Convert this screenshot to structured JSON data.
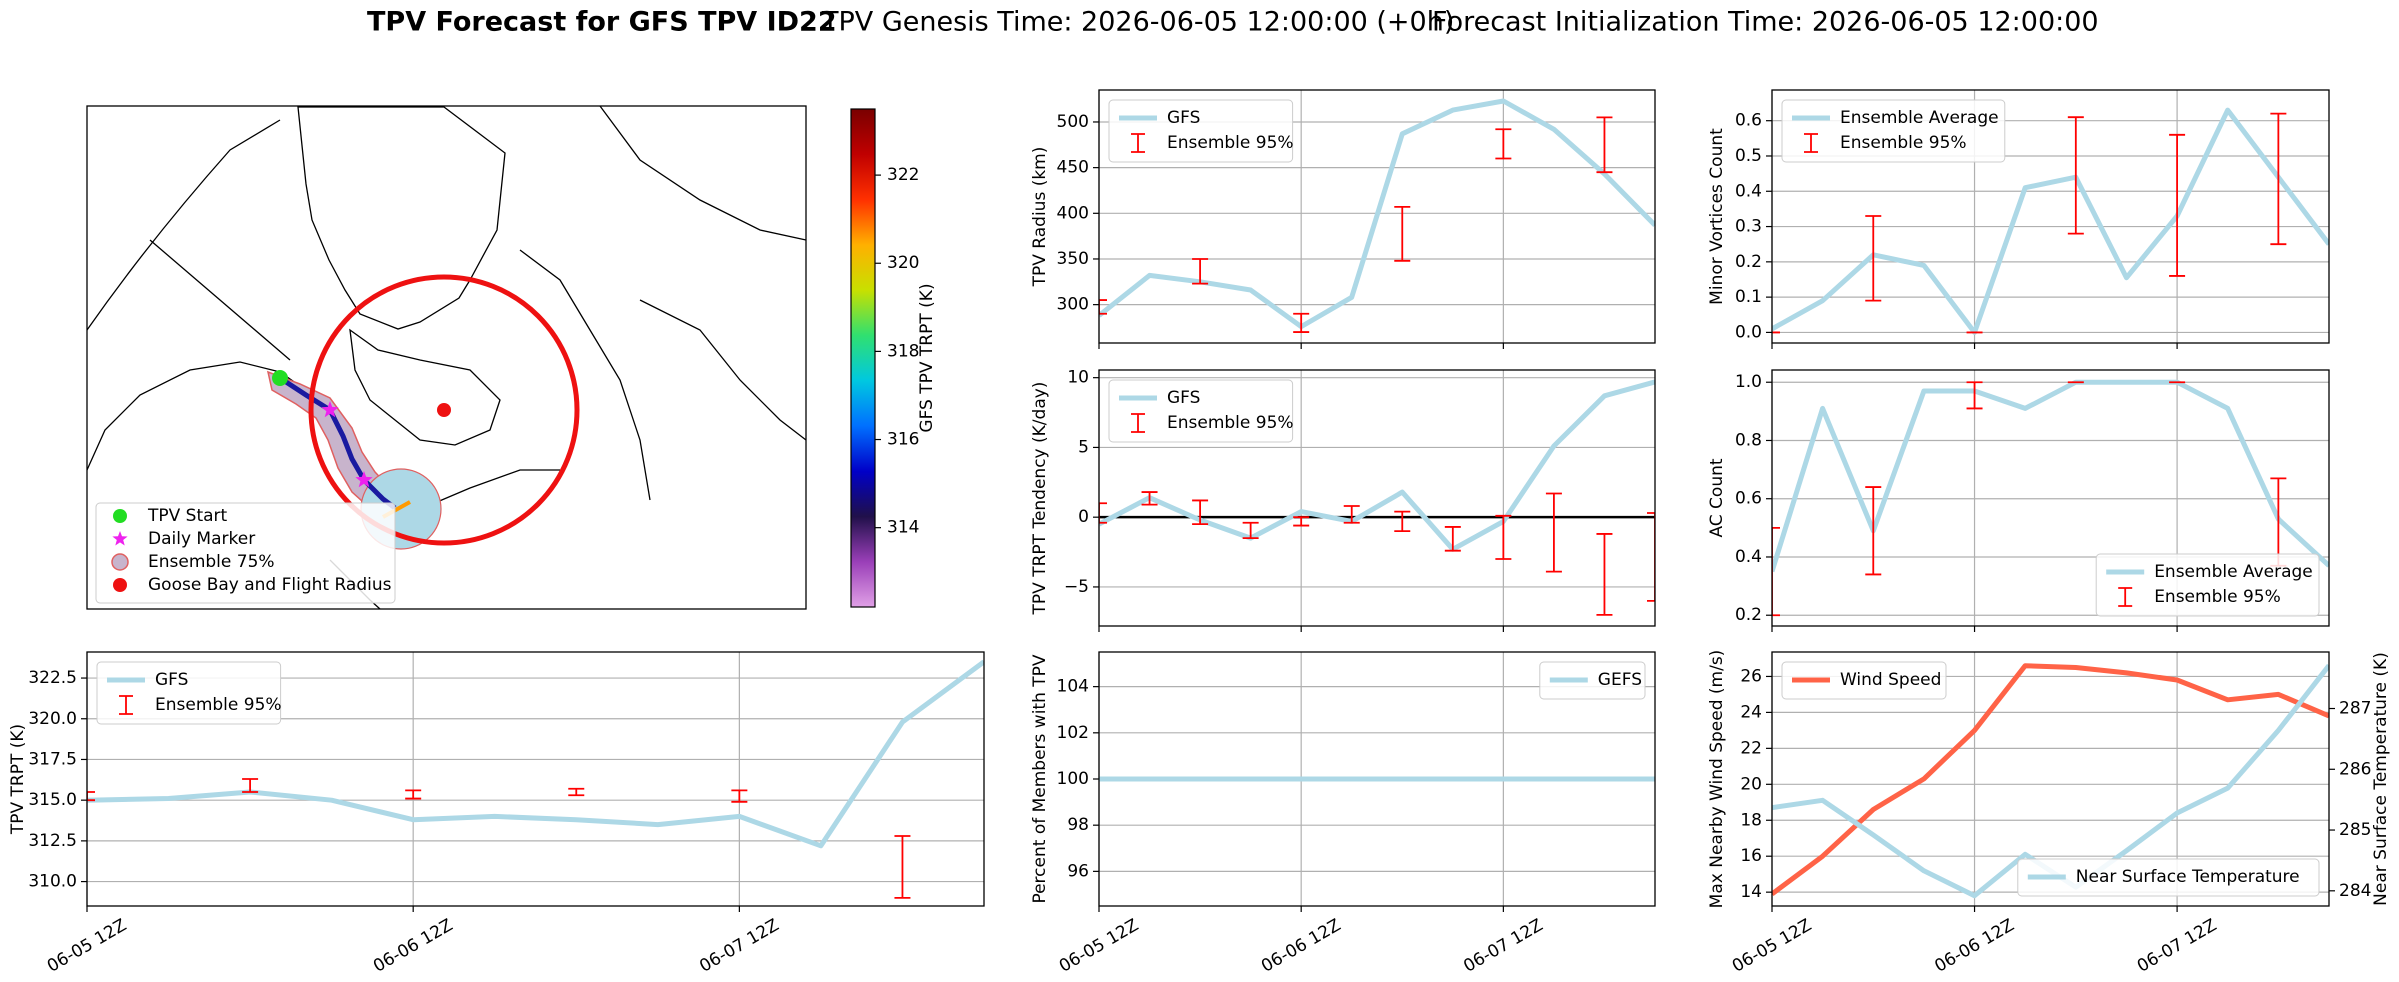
{
  "figure": {
    "title": "TPV Forecast for GFS TPV ID22",
    "genesis": "TPV Genesis Time: 2026-06-05 12:00:00 (+0h)",
    "init": "Forecast Initialization Time: 2026-06-05 12:00:00"
  },
  "chart_data": [
    {
      "type": "map",
      "legend": [
        "TPV Start",
        "Daily Marker",
        "Ensemble 75%",
        "Goose Bay and Flight Radius"
      ]
    },
    {
      "type": "colorbar",
      "label": "GFS TPV TRPT (K)",
      "ylim": [
        312.2,
        323.5
      ],
      "yticks": [
        314,
        316,
        318,
        320,
        322
      ],
      "colors": [
        "#e0a0e6",
        "#9a3fb8",
        "#20104a",
        "#0000c8",
        "#0070ff",
        "#00c8e0",
        "#30e070",
        "#c8e000",
        "#ffb000",
        "#ff3000",
        "#c00000",
        "#7a0000"
      ]
    },
    {
      "type": "line",
      "ylabel": "TPV Radius (km)",
      "x": [
        0,
        6,
        12,
        18,
        24,
        30,
        36,
        42,
        48,
        54,
        60,
        66
      ],
      "xlim": [
        0,
        66
      ],
      "xticks": [
        0,
        24,
        48
      ],
      "ylim": [
        258,
        535
      ],
      "yticks": [
        300,
        350,
        400,
        450,
        500
      ],
      "grid": true,
      "legend": "upper left",
      "series": [
        {
          "name": "GFS",
          "color": "#add8e6",
          "values": [
            288,
            332,
            325,
            316,
            276,
            308,
            487,
            513,
            523,
            492,
            443,
            387
          ]
        }
      ],
      "errorbars": {
        "name": "Ensemble 95%",
        "color": "#ff0000",
        "x": [
          0,
          12,
          24,
          36,
          48,
          60
        ],
        "low": [
          290,
          323,
          270,
          348,
          460,
          445
        ],
        "high": [
          305,
          350,
          290,
          407,
          492,
          505
        ]
      }
    },
    {
      "type": "line",
      "ylabel": "Minor Vortices Count",
      "x": [
        0,
        6,
        12,
        18,
        24,
        30,
        36,
        42,
        48,
        54,
        60,
        66
      ],
      "xlim": [
        0,
        66
      ],
      "xticks": [
        0,
        24,
        48
      ],
      "ylim": [
        -0.03,
        0.687
      ],
      "yticks": [
        {
          "value": 0,
          "label": "0.0"
        },
        0.1,
        0.2,
        0.3,
        0.4,
        0.5,
        0.6
      ],
      "grid": true,
      "legend": "upper left",
      "series": [
        {
          "name": "Ensemble Average",
          "color": "#add8e6",
          "values": [
            0.01,
            0.09,
            0.22,
            0.19,
            0.0,
            0.41,
            0.44,
            0.155,
            0.33,
            0.63,
            0.44,
            0.25
          ]
        }
      ],
      "errorbars": {
        "name": "Ensemble 95%",
        "color": "#ff0000",
        "x": [
          0,
          12,
          24,
          36,
          48,
          60
        ],
        "low": [
          0.0,
          0.09,
          0.0,
          0.28,
          0.16,
          0.25
        ],
        "high": [
          0.0,
          0.33,
          0.0,
          0.61,
          0.56,
          0.62
        ]
      }
    },
    {
      "type": "line",
      "ylabel": "TPV TRPT Tendency (K/day)",
      "x": [
        0,
        6,
        12,
        18,
        24,
        30,
        36,
        42,
        48,
        54,
        60,
        66
      ],
      "xlim": [
        0,
        66
      ],
      "xticks": [
        0,
        24,
        48
      ],
      "ylim": [
        -7.8,
        10.55
      ],
      "yticks": [
        {
          "value": -5,
          "label": "−5"
        },
        0,
        5,
        10
      ],
      "grid": true,
      "legend": "upper left",
      "hline": 0,
      "series": [
        {
          "name": "GFS",
          "color": "#add8e6",
          "values": [
            -0.5,
            1.4,
            -0.2,
            -1.5,
            0.4,
            -0.3,
            1.8,
            -2.3,
            -0.3,
            5.1,
            8.7,
            9.7
          ]
        }
      ],
      "errorbars": {
        "name": "Ensemble 95%",
        "color": "#ff0000",
        "x": [
          0,
          6,
          12,
          18,
          24,
          30,
          36,
          42,
          48,
          54,
          60,
          66
        ],
        "low": [
          -0.4,
          0.9,
          -0.5,
          -1.5,
          -0.6,
          -0.4,
          -1.0,
          -2.4,
          -3.0,
          -3.9,
          -7.0,
          -6.0
        ],
        "high": [
          1.0,
          1.8,
          1.2,
          -0.4,
          0.0,
          0.8,
          0.4,
          -0.7,
          0.1,
          1.7,
          -1.2,
          0.3
        ]
      }
    },
    {
      "type": "line",
      "ylabel": "AC Count",
      "x": [
        0,
        6,
        12,
        18,
        24,
        30,
        36,
        42,
        48,
        54,
        60,
        66
      ],
      "xlim": [
        0,
        66
      ],
      "xticks": [
        0,
        24,
        48
      ],
      "ylim": [
        0.163,
        1.042
      ],
      "yticks": [
        0.2,
        0.4,
        0.6,
        0.8,
        {
          "value": 1,
          "label": "1.0"
        }
      ],
      "grid": true,
      "legend": "lower right",
      "series": [
        {
          "name": "Ensemble Average",
          "color": "#add8e6",
          "values": [
            0.35,
            0.91,
            0.49,
            0.97,
            0.97,
            0.91,
            1.0,
            1.0,
            1.0,
            0.91,
            0.53,
            0.37
          ]
        }
      ],
      "errorbars": {
        "name": "Ensemble 95%",
        "color": "#ff0000",
        "x": [
          0,
          12,
          24,
          36,
          48,
          60
        ],
        "low": [
          0.2,
          0.34,
          0.91,
          1.0,
          1.0,
          0.37
        ],
        "high": [
          0.5,
          0.64,
          1.0,
          1.0,
          1.0,
          0.67
        ]
      }
    },
    {
      "type": "line",
      "ylabel": "TPV TRPT (K)",
      "x": [
        0,
        6,
        12,
        18,
        24,
        30,
        36,
        42,
        48,
        54,
        60,
        66
      ],
      "xlim": [
        0,
        66
      ],
      "xticks": [
        {
          "value": 0,
          "label": "06-05 12Z"
        },
        {
          "value": 24,
          "label": "06-06 12Z"
        },
        {
          "value": 48,
          "label": "06-07 12Z"
        }
      ],
      "ylim": [
        308.5,
        324.1
      ],
      "yticks": [
        {
          "value": 310,
          "label": "310.0"
        },
        312.5,
        {
          "value": 315,
          "label": "315.0"
        },
        317.5,
        {
          "value": 320,
          "label": "320.0"
        },
        322.5
      ],
      "grid": true,
      "legend": "upper left",
      "series": [
        {
          "name": "GFS",
          "color": "#add8e6",
          "values": [
            315.0,
            315.1,
            315.5,
            315.0,
            313.8,
            314.0,
            313.8,
            313.5,
            314.0,
            312.2,
            319.8,
            323.5
          ]
        }
      ],
      "errorbars": {
        "name": "Ensemble 95%",
        "color": "#ff0000",
        "x": [
          0,
          12,
          24,
          36,
          48,
          60
        ],
        "low": [
          315.0,
          315.5,
          315.1,
          315.3,
          314.9,
          309.0
        ],
        "high": [
          315.5,
          316.3,
          315.6,
          315.7,
          315.6,
          312.8
        ]
      }
    },
    {
      "type": "line",
      "ylabel": "Percent of Members with TPV",
      "x": [
        0,
        6,
        12,
        18,
        24,
        30,
        36,
        42,
        48,
        54,
        60,
        66
      ],
      "xlim": [
        0,
        66
      ],
      "xticks": [
        {
          "value": 0,
          "label": "06-05 12Z"
        },
        {
          "value": 24,
          "label": "06-06 12Z"
        },
        {
          "value": 48,
          "label": "06-07 12Z"
        }
      ],
      "ylim": [
        94.5,
        105.5
      ],
      "yticks": [
        96,
        98,
        100,
        102,
        104
      ],
      "grid": true,
      "legend": "upper right",
      "series": [
        {
          "name": "GEFS",
          "color": "#add8e6",
          "values": [
            100,
            100,
            100,
            100,
            100,
            100,
            100,
            100,
            100,
            100,
            100,
            100
          ]
        }
      ]
    },
    {
      "type": "line",
      "ylabel": "Max Nearby Wind Speed (m/s)",
      "ycolor": "#ff6347",
      "y2label": "Near Surface Temperature (K)",
      "y2color": "#4169e1",
      "x": [
        0,
        6,
        12,
        18,
        24,
        30,
        36,
        42,
        48,
        54,
        60,
        66
      ],
      "xlim": [
        0,
        66
      ],
      "xticks": [
        {
          "value": 0,
          "label": "06-05 12Z"
        },
        {
          "value": 24,
          "label": "06-06 12Z"
        },
        {
          "value": 48,
          "label": "06-07 12Z"
        }
      ],
      "ylim": [
        13.23,
        27.36
      ],
      "yticks": [
        14,
        16,
        18,
        20,
        22,
        24,
        26
      ],
      "y2lim": [
        283.75,
        287.93
      ],
      "y2ticks": [
        284,
        285,
        286,
        287
      ],
      "grid": true,
      "series": [
        {
          "name": "Wind Speed",
          "color": "#ff6347",
          "legend": "upper left",
          "values": [
            13.9,
            16.0,
            18.6,
            20.3,
            23.0,
            26.6,
            26.5,
            26.2,
            25.8,
            24.7,
            25.0,
            23.8
          ]
        },
        {
          "name": "Near Surface Temperature",
          "color": "#add8e6",
          "axis": "y2",
          "legend": "lower right",
          "values": [
            285.37,
            285.49,
            284.92,
            284.33,
            283.92,
            284.6,
            284.06,
            284.66,
            285.28,
            285.69,
            286.64,
            287.71
          ]
        }
      ]
    }
  ]
}
